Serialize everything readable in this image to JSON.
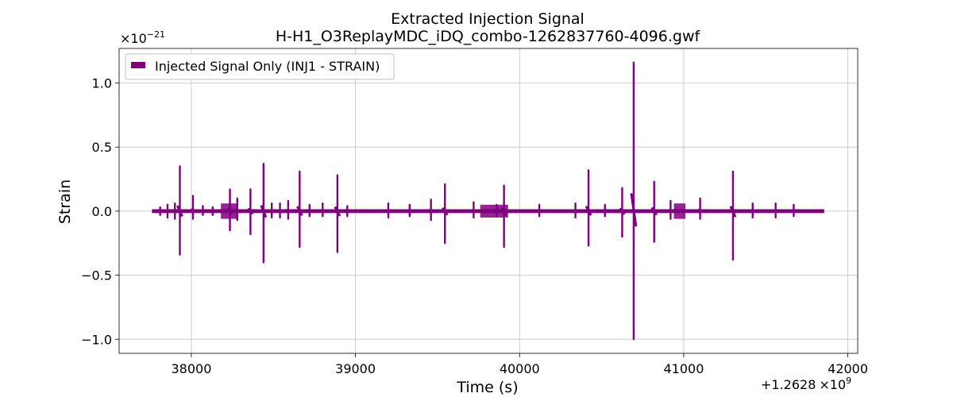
{
  "chart_data": {
    "type": "line",
    "title": "Extracted Injection Signal",
    "subtitle": "H-H1_O3ReplayMDC_iDQ_combo-1262837760-4096.gwf",
    "xlabel": "Time (s)",
    "ylabel": "Strain",
    "x_offset_label": "+1.2628",
    "x_offset_base": "×10",
    "x_offset_exp": "9",
    "y_scale_base": "×10",
    "y_scale_exp": "−21",
    "xlim": [
      37560,
      42060
    ],
    "ylim": [
      -1.11,
      1.27
    ],
    "xticks": [
      38000,
      39000,
      40000,
      41000,
      42000
    ],
    "xtick_labels": [
      "38000",
      "39000",
      "40000",
      "41000",
      "42000"
    ],
    "yticks": [
      1.0,
      0.5,
      0.0,
      -0.5,
      -1.0
    ],
    "ytick_labels": [
      "1.0",
      "0.5",
      "0.0",
      "−0.5",
      "−1.0"
    ],
    "grid": true,
    "legend_position": "top-left",
    "color": "#800080",
    "series": [
      {
        "name": "Injected Signal Only (INJ1 - STRAIN)",
        "x_range": [
          37760,
          41856
        ],
        "baseline_amplitude": 0.015,
        "spikes": [
          {
            "x": 37810,
            "max": 0.03,
            "min": -0.03
          },
          {
            "x": 37855,
            "max": 0.05,
            "min": -0.05
          },
          {
            "x": 37900,
            "max": 0.06,
            "min": -0.06
          },
          {
            "x": 37930,
            "max": 0.35,
            "min": -0.34
          },
          {
            "x": 38010,
            "max": 0.12,
            "min": -0.06
          },
          {
            "x": 38070,
            "max": 0.04,
            "min": -0.03
          },
          {
            "x": 38130,
            "max": 0.03,
            "min": -0.03
          },
          {
            "x": 38235,
            "max": 0.17,
            "min": -0.15
          },
          {
            "x": 38280,
            "max": 0.1,
            "min": -0.07
          },
          {
            "x": 38360,
            "max": 0.17,
            "min": -0.18
          },
          {
            "x": 38440,
            "max": 0.37,
            "min": -0.4
          },
          {
            "x": 38490,
            "max": 0.06,
            "min": -0.05
          },
          {
            "x": 38540,
            "max": 0.06,
            "min": -0.05
          },
          {
            "x": 38590,
            "max": 0.08,
            "min": -0.06
          },
          {
            "x": 38660,
            "max": 0.31,
            "min": -0.28
          },
          {
            "x": 38720,
            "max": 0.05,
            "min": -0.04
          },
          {
            "x": 38800,
            "max": 0.06,
            "min": -0.04
          },
          {
            "x": 38890,
            "max": 0.28,
            "min": -0.32
          },
          {
            "x": 38950,
            "max": 0.04,
            "min": -0.04
          },
          {
            "x": 39200,
            "max": 0.06,
            "min": -0.05
          },
          {
            "x": 39330,
            "max": 0.05,
            "min": -0.04
          },
          {
            "x": 39460,
            "max": 0.09,
            "min": -0.07
          },
          {
            "x": 39545,
            "max": 0.21,
            "min": -0.25
          },
          {
            "x": 39720,
            "max": 0.07,
            "min": -0.05
          },
          {
            "x": 39860,
            "max": 0.05,
            "min": -0.04
          },
          {
            "x": 39905,
            "max": 0.2,
            "min": -0.28
          },
          {
            "x": 40120,
            "max": 0.05,
            "min": -0.04
          },
          {
            "x": 40340,
            "max": 0.06,
            "min": -0.05
          },
          {
            "x": 40420,
            "max": 0.32,
            "min": -0.27
          },
          {
            "x": 40520,
            "max": 0.05,
            "min": -0.04
          },
          {
            "x": 40625,
            "max": 0.18,
            "min": -0.2
          },
          {
            "x": 40695,
            "max": 1.16,
            "min": -1.0
          },
          {
            "x": 40820,
            "max": 0.23,
            "min": -0.24
          },
          {
            "x": 40920,
            "max": 0.08,
            "min": -0.06
          },
          {
            "x": 41100,
            "max": 0.1,
            "min": -0.06
          },
          {
            "x": 41300,
            "max": 0.31,
            "min": -0.38
          },
          {
            "x": 41420,
            "max": 0.06,
            "min": -0.05
          },
          {
            "x": 41560,
            "max": 0.06,
            "min": -0.05
          },
          {
            "x": 41670,
            "max": 0.05,
            "min": -0.04
          }
        ],
        "bursts": [
          {
            "x0": 38180,
            "x1": 38280,
            "amp": 0.06
          },
          {
            "x0": 39760,
            "x1": 39930,
            "amp": 0.05
          },
          {
            "x0": 40940,
            "x1": 41010,
            "amp": 0.06
          }
        ]
      }
    ]
  }
}
